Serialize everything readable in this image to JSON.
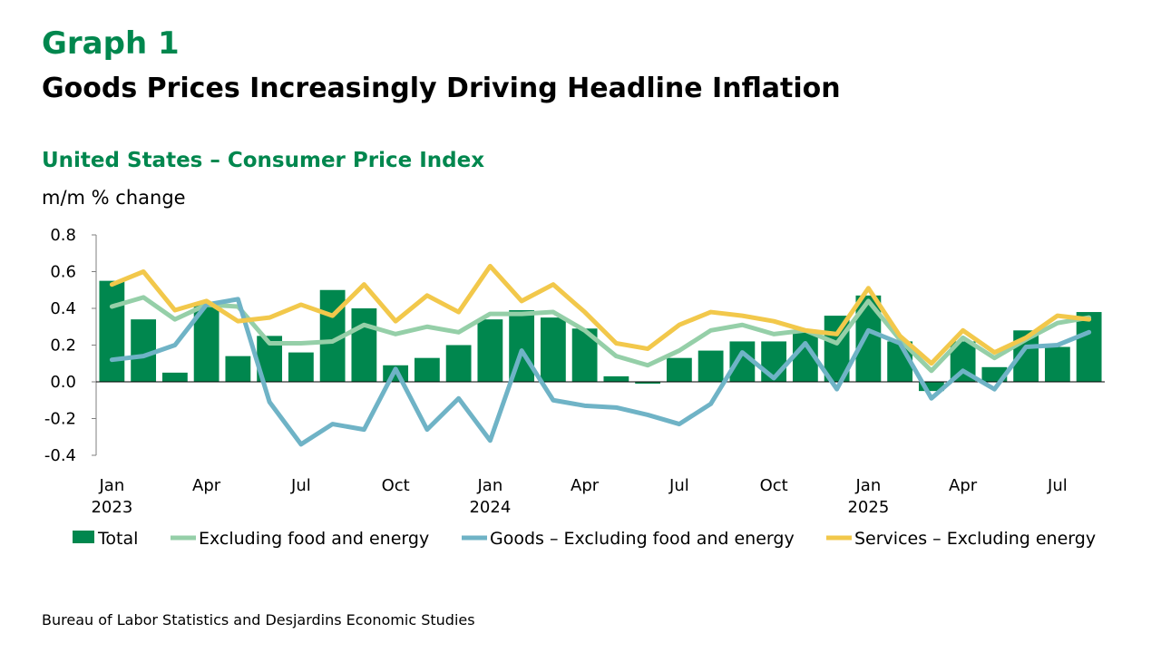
{
  "header": {
    "graph_number": "Graph 1",
    "title": "Goods Prices Increasingly Driving Headline Inflation",
    "subtitle": "United States – Consumer Price Index",
    "unit": "m/m % change"
  },
  "footer": {
    "source": "Bureau of Labor Statistics and Desjardins Economic Studies"
  },
  "colors": {
    "title_green": "#00874E",
    "total_bar": "#00874E",
    "core_line": "#95CFA8",
    "goods_line": "#6FB3C6",
    "services_line": "#F2C84B"
  },
  "chart_data": {
    "type": "bar",
    "categories": [
      "Jan 2023",
      "Feb 2023",
      "Mar 2023",
      "Apr 2023",
      "May 2023",
      "Jun 2023",
      "Jul 2023",
      "Aug 2023",
      "Sep 2023",
      "Oct 2023",
      "Nov 2023",
      "Dec 2023",
      "Jan 2024",
      "Feb 2024",
      "Mar 2024",
      "Apr 2024",
      "May 2024",
      "Jun 2024",
      "Jul 2024",
      "Aug 2024",
      "Sep 2024",
      "Oct 2024",
      "Nov 2024",
      "Dec 2024",
      "Jan 2025",
      "Feb 2025",
      "Mar 2025",
      "Apr 2025",
      "May 2025",
      "Jun 2025",
      "Jul 2025",
      "Aug 2025"
    ],
    "x_tick_labels": [
      {
        "index": 0,
        "line1": "Jan",
        "line2": "2023"
      },
      {
        "index": 3,
        "line1": "Apr",
        "line2": ""
      },
      {
        "index": 6,
        "line1": "Jul",
        "line2": ""
      },
      {
        "index": 9,
        "line1": "Oct",
        "line2": ""
      },
      {
        "index": 12,
        "line1": "Jan",
        "line2": "2024"
      },
      {
        "index": 15,
        "line1": "Apr",
        "line2": ""
      },
      {
        "index": 18,
        "line1": "Jul",
        "line2": ""
      },
      {
        "index": 21,
        "line1": "Oct",
        "line2": ""
      },
      {
        "index": 24,
        "line1": "Jan",
        "line2": "2025"
      },
      {
        "index": 27,
        "line1": "Apr",
        "line2": ""
      },
      {
        "index": 30,
        "line1": "Jul",
        "line2": ""
      }
    ],
    "y_ticks": [
      "0.8",
      "0.6",
      "0.4",
      "0.2",
      "0.0",
      "-0.2",
      "-0.4"
    ],
    "ylim": [
      -0.4,
      0.8
    ],
    "series": [
      {
        "name": "Total",
        "kind": "bar",
        "color": "#00874E",
        "values": [
          0.55,
          0.34,
          0.05,
          0.42,
          0.14,
          0.25,
          0.16,
          0.5,
          0.4,
          0.09,
          0.13,
          0.2,
          0.34,
          0.39,
          0.35,
          0.29,
          0.03,
          -0.01,
          0.13,
          0.17,
          0.22,
          0.22,
          0.28,
          0.36,
          0.47,
          0.22,
          -0.05,
          0.22,
          0.08,
          0.28,
          0.19,
          0.38
        ]
      },
      {
        "name": "Excluding food and energy",
        "kind": "line",
        "color": "#95CFA8",
        "values": [
          0.41,
          0.46,
          0.34,
          0.42,
          0.41,
          0.21,
          0.21,
          0.22,
          0.31,
          0.26,
          0.3,
          0.27,
          0.37,
          0.37,
          0.38,
          0.28,
          0.14,
          0.09,
          0.17,
          0.28,
          0.31,
          0.26,
          0.28,
          0.21,
          0.44,
          0.23,
          0.06,
          0.24,
          0.13,
          0.23,
          0.32,
          0.35
        ]
      },
      {
        "name": "Goods – Excluding food and energy",
        "kind": "line",
        "color": "#6FB3C6",
        "values": [
          0.12,
          0.14,
          0.2,
          0.42,
          0.45,
          -0.11,
          -0.34,
          -0.23,
          -0.26,
          0.07,
          -0.26,
          -0.09,
          -0.32,
          0.17,
          -0.1,
          -0.13,
          -0.14,
          -0.18,
          -0.23,
          -0.12,
          0.16,
          0.02,
          0.21,
          -0.04,
          0.28,
          0.21,
          -0.09,
          0.06,
          -0.04,
          0.19,
          0.2,
          0.27
        ]
      },
      {
        "name": "Services – Excluding energy",
        "kind": "line",
        "color": "#F2C84B",
        "values": [
          0.53,
          0.6,
          0.39,
          0.44,
          0.33,
          0.35,
          0.42,
          0.36,
          0.53,
          0.33,
          0.47,
          0.38,
          0.63,
          0.44,
          0.53,
          0.38,
          0.21,
          0.18,
          0.31,
          0.38,
          0.36,
          0.33,
          0.28,
          0.26,
          0.51,
          0.25,
          0.1,
          0.28,
          0.16,
          0.24,
          0.36,
          0.34
        ]
      }
    ],
    "legend_position": "bottom",
    "grid": false
  }
}
